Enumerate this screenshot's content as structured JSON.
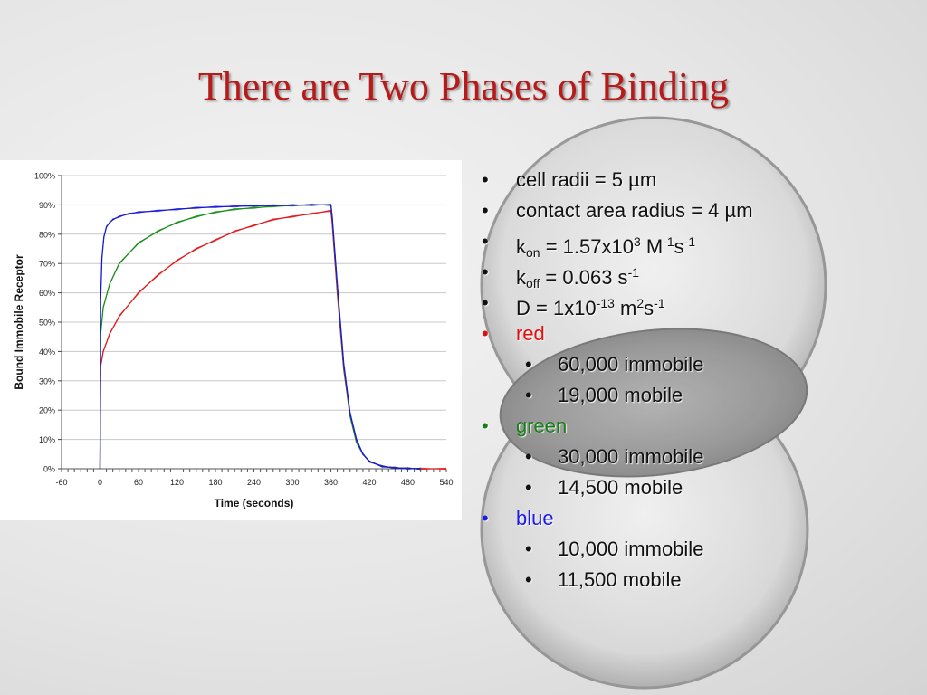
{
  "slide": {
    "title": "There are Two Phases of Binding"
  },
  "bullets": [
    {
      "parts": [
        "cell radii = 5 ",
        "µ",
        "m"
      ],
      "level": 1
    },
    {
      "parts": [
        "contact area radius = 4 ",
        "µ",
        "m"
      ],
      "level": 1
    },
    {
      "parts": [
        "k",
        "on",
        " = 1.57x10",
        "3",
        " M",
        "-1",
        "s",
        "-1"
      ],
      "level": 1
    },
    {
      "parts": [
        "k",
        "off",
        " = 0.063 s",
        "-1"
      ],
      "level": 1
    },
    {
      "parts": [
        "D = 1x10",
        "-13",
        " m",
        "2",
        "s",
        "-1"
      ],
      "level": 1
    },
    {
      "text": "red",
      "level": 1,
      "color": "#e01010"
    },
    {
      "text": "60,000 immobile",
      "level": 2
    },
    {
      "text": "19,000 mobile",
      "level": 2
    },
    {
      "text": "green",
      "level": 1,
      "color": "#1a7f1a"
    },
    {
      "text": "30,000 immobile",
      "level": 2
    },
    {
      "text": "14,500 mobile",
      "level": 2
    },
    {
      "text": "blue",
      "level": 1,
      "color": "#1a1ae6"
    },
    {
      "text": "10,000 immobile",
      "level": 2
    },
    {
      "text": "11,500 mobile",
      "level": 2
    }
  ],
  "bullet_glyph": "•",
  "chart_data": {
    "type": "line",
    "xlabel": "Time (seconds)",
    "ylabel": "Bound Immobile Receptor",
    "xlim": [
      -60,
      540
    ],
    "ylim": [
      0,
      100
    ],
    "xticks": [
      "-60",
      "0",
      "60",
      "120",
      "180",
      "240",
      "300",
      "360",
      "420",
      "480",
      "540"
    ],
    "yticks": [
      "0%",
      "10%",
      "20%",
      "30%",
      "40%",
      "50%",
      "60%",
      "70%",
      "80%",
      "90%",
      "100%"
    ],
    "grid": "horizontal",
    "legend": "none",
    "series": [
      {
        "color": "#e01a1a",
        "x": [
          0,
          1,
          5,
          15,
          30,
          60,
          90,
          120,
          150,
          180,
          210,
          240,
          270,
          300,
          330,
          360,
          362,
          370,
          380,
          390,
          400,
          410,
          420,
          440,
          460,
          480,
          500,
          540
        ],
        "y": [
          0,
          35,
          40,
          46,
          52,
          60,
          66,
          71,
          75,
          78,
          81,
          83,
          85,
          86,
          87,
          88,
          84,
          60,
          34,
          18,
          9,
          5,
          2.5,
          0.8,
          0.3,
          0.1,
          0,
          0
        ]
      },
      {
        "color": "#1a8f1a",
        "x": [
          0,
          1,
          5,
          15,
          30,
          60,
          90,
          120,
          150,
          180,
          210,
          240,
          270,
          300,
          330,
          360,
          362,
          370,
          380,
          390,
          400,
          410,
          420,
          440,
          460,
          480,
          500
        ],
        "y": [
          0,
          46,
          55,
          63,
          70,
          77,
          81,
          84,
          86,
          87.5,
          88.5,
          89,
          89.5,
          89.8,
          90,
          90,
          86,
          62,
          35,
          18,
          9,
          5,
          2.5,
          0.8,
          0.3,
          0.1,
          0
        ]
      },
      {
        "color": "#1a1ad6",
        "x": [
          0,
          1,
          3,
          6,
          10,
          15,
          20,
          30,
          45,
          60,
          90,
          120,
          150,
          180,
          210,
          240,
          270,
          300,
          330,
          360,
          362,
          370,
          380,
          390,
          400,
          410,
          420,
          440,
          460,
          480,
          500
        ],
        "y": [
          0,
          58,
          72,
          79,
          82.5,
          84,
          85,
          86,
          87,
          87.5,
          88,
          88.5,
          89,
          89.3,
          89.5,
          89.7,
          89.8,
          89.9,
          90,
          90,
          86,
          63,
          36,
          19,
          10,
          5,
          2.5,
          0.8,
          0.3,
          0.1,
          0
        ]
      }
    ]
  }
}
